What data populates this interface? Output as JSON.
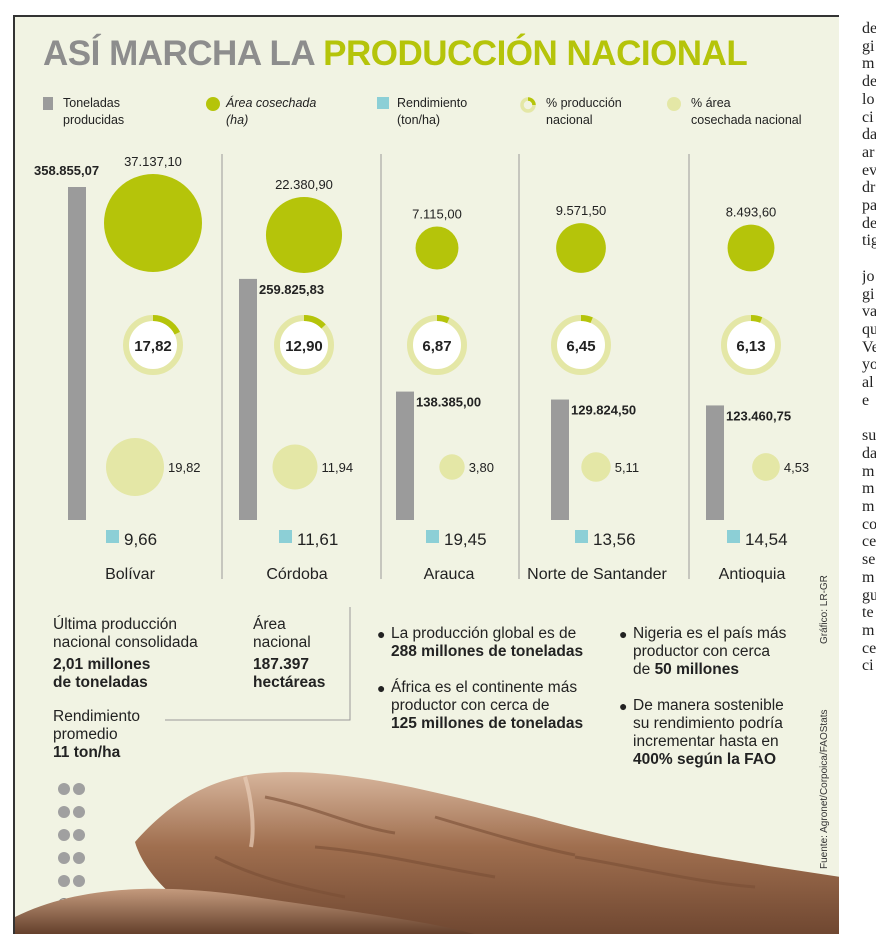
{
  "title": {
    "part1": "ASÍ MARCHA LA",
    "part2": "PRODUCCIÓN NACIONAL"
  },
  "legend": [
    {
      "label_line1": "Toneladas",
      "label_line2": "producidas",
      "icon": "gray-bar",
      "color": "#9b9b9b"
    },
    {
      "label_line1": "Área cosechada",
      "label_line2": "(ha)",
      "icon": "green-circle",
      "color": "#b5c40a"
    },
    {
      "label_line1": "Rendimiento",
      "label_line2": "(ton/ha)",
      "icon": "blue-square",
      "color": "#8ccfd6"
    },
    {
      "label_line1": "% producción",
      "label_line2": "nacional",
      "icon": "ring",
      "color": "#b5c40a"
    },
    {
      "label_line1": "% área",
      "label_line2": "cosechada nacional",
      "icon": "pale-circle",
      "color": "#e4e7a6"
    }
  ],
  "chart_data": {
    "type": "bar",
    "categories": [
      "Bolívar",
      "Córdoba",
      "Arauca",
      "Norte de Santander",
      "Antioquia"
    ],
    "series": [
      {
        "name": "Toneladas producidas",
        "values": [
          358855.07,
          259825.83,
          138385.0,
          129824.5,
          123460.75
        ],
        "labels": [
          "358.855,07",
          "259.825,83",
          "138.385,00",
          "129.824,50",
          "123.460,75"
        ]
      },
      {
        "name": "Área cosechada (ha)",
        "values": [
          37137.1,
          22380.9,
          7115.0,
          9571.5,
          8493.6
        ],
        "labels": [
          "37.137,10",
          "22.380,90",
          "7.115,00",
          "9.571,50",
          "8.493,60"
        ]
      },
      {
        "name": "% producción nacional",
        "values": [
          17.82,
          12.9,
          6.87,
          6.45,
          6.13
        ],
        "labels": [
          "17,82",
          "12,90",
          "6,87",
          "6,45",
          "6,13"
        ]
      },
      {
        "name": "% área cosechada nacional",
        "values": [
          19.82,
          11.94,
          3.8,
          5.11,
          4.53
        ],
        "labels": [
          "19,82",
          "11,94",
          "3,80",
          "5,11",
          "4,53"
        ]
      },
      {
        "name": "Rendimiento (ton/ha)",
        "values": [
          9.66,
          11.61,
          19.45,
          13.56,
          14.54
        ],
        "labels": [
          "9,66",
          "11,61",
          "19,45",
          "13,56",
          "14,54"
        ]
      }
    ],
    "colors": {
      "bar": "#9b9b9b",
      "area": "#b5c40a",
      "ring_track": "#e4e7a6",
      "ring_fill": "#b5c40a",
      "pct_area": "#e4e7a6",
      "yield": "#8ccfd6",
      "divider": "#9a9a9a"
    }
  },
  "facts": {
    "last_production_label": "Última producción nacional consolidada",
    "last_production_l1": "Última producción",
    "last_production_l2": "nacional consolidada",
    "last_production_v1": "2,01 millones",
    "last_production_v2": "de toneladas",
    "area_l1": "Área",
    "area_l2": "nacional",
    "area_v1": "187.397",
    "area_v2": "hectáreas",
    "yield_l1": "Rendimiento",
    "yield_l2": "promedio",
    "yield_v": "11 ton/ha"
  },
  "bullets": {
    "b1_l1": "La producción global es de",
    "b1_l2": "288 millones de toneladas",
    "b2_l1": "África es el continente más",
    "b2_l2": "productor con cerca de",
    "b2_l3": "125 millones de toneladas",
    "b3_l1": "Nigeria es el país más",
    "b3_l2": "productor con cerca",
    "b3_l3a": "de ",
    "b3_l3b": "50 millones",
    "b4_l1": "De manera sostenible",
    "b4_l2": "su rendimiento podría",
    "b4_l3": "incrementar hasta en",
    "b4_l4": "400% según la FAO"
  },
  "credits": {
    "graphic": "Gráfico: LR-GR",
    "source": "Fuente: Agronet/Corpoica/FAOStats"
  },
  "article_fragments": [
    "de",
    "gi",
    "m",
    "de",
    "lo",
    "ci",
    "da",
    "ar",
    "ev",
    "dr",
    "pa",
    "de",
    "tig",
    "",
    "jo",
    "gi",
    "va",
    "qu",
    "Ve",
    "yo",
    "al",
    "e",
    "",
    "su",
    "da",
    "m",
    "m",
    "m",
    "co",
    "ce",
    "se",
    "m",
    "gu",
    "te",
    "m",
    "ce",
    "ci"
  ]
}
